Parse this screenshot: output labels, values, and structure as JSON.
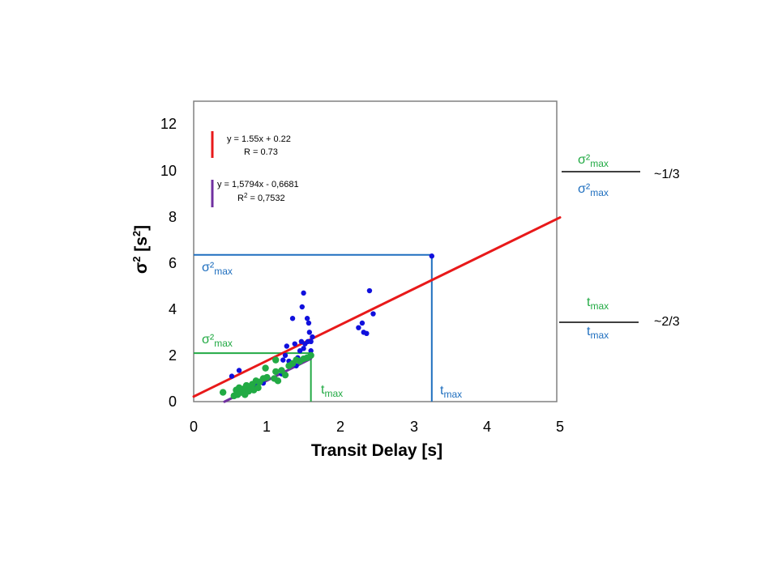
{
  "chart_data": {
    "type": "scatter",
    "xlabel": "Transit Delay [s]",
    "ylabel": "σ² [s²]",
    "xlim": [
      0,
      5
    ],
    "ylim": [
      0,
      13
    ],
    "x_ticks": [
      "0",
      "1",
      "2",
      "3",
      "4",
      "5"
    ],
    "y_ticks": [
      "0",
      "2",
      "4",
      "6",
      "8",
      "10",
      "12"
    ],
    "grid": false,
    "series": [
      {
        "color": "#1010dd",
        "points": [
          [
            0.52,
            1.1
          ],
          [
            0.62,
            1.35
          ],
          [
            0.75,
            0.5
          ],
          [
            0.85,
            0.7
          ],
          [
            0.95,
            0.8
          ],
          [
            1.2,
            1.2
          ],
          [
            1.22,
            1.8
          ],
          [
            1.25,
            2.0
          ],
          [
            1.27,
            2.4
          ],
          [
            1.3,
            1.75
          ],
          [
            1.35,
            3.6
          ],
          [
            1.38,
            2.5
          ],
          [
            1.4,
            1.55
          ],
          [
            1.42,
            1.9
          ],
          [
            1.45,
            2.2
          ],
          [
            1.47,
            2.6
          ],
          [
            1.48,
            4.1
          ],
          [
            1.5,
            4.7
          ],
          [
            1.5,
            2.3
          ],
          [
            1.52,
            2.5
          ],
          [
            1.53,
            1.9
          ],
          [
            1.55,
            3.6
          ],
          [
            1.56,
            2.6
          ],
          [
            1.57,
            3.4
          ],
          [
            1.58,
            3.0
          ],
          [
            1.6,
            2.2
          ],
          [
            1.6,
            2.6
          ],
          [
            1.62,
            2.8
          ],
          [
            2.25,
            3.2
          ],
          [
            2.3,
            3.4
          ],
          [
            2.32,
            3.0
          ],
          [
            2.36,
            2.95
          ],
          [
            2.4,
            4.8
          ],
          [
            2.45,
            3.8
          ],
          [
            3.25,
            6.3
          ]
        ]
      },
      {
        "color": "#22aa44",
        "points": [
          [
            0.4,
            0.4
          ],
          [
            0.55,
            0.25
          ],
          [
            0.58,
            0.5
          ],
          [
            0.6,
            0.3
          ],
          [
            0.62,
            0.6
          ],
          [
            0.65,
            0.4
          ],
          [
            0.68,
            0.55
          ],
          [
            0.7,
            0.3
          ],
          [
            0.72,
            0.7
          ],
          [
            0.75,
            0.45
          ],
          [
            0.78,
            0.6
          ],
          [
            0.8,
            0.75
          ],
          [
            0.82,
            0.5
          ],
          [
            0.85,
            0.9
          ],
          [
            0.88,
            0.6
          ],
          [
            0.9,
            0.85
          ],
          [
            0.95,
            1.0
          ],
          [
            1.0,
            1.05
          ],
          [
            0.98,
            1.45
          ],
          [
            1.1,
            1.0
          ],
          [
            1.12,
            1.3
          ],
          [
            1.15,
            0.9
          ],
          [
            1.2,
            1.35
          ],
          [
            1.25,
            1.15
          ],
          [
            1.3,
            1.55
          ],
          [
            1.35,
            1.65
          ],
          [
            1.4,
            1.8
          ],
          [
            1.45,
            1.75
          ],
          [
            1.5,
            1.85
          ],
          [
            1.55,
            1.9
          ],
          [
            1.6,
            2.0
          ],
          [
            1.12,
            1.8
          ]
        ]
      }
    ],
    "fits": [
      {
        "color": "#e8191a",
        "slope": 1.55,
        "intercept": 0.22,
        "x_range": [
          0,
          5
        ],
        "equation": "y = 1.55x + 0.22",
        "r_label": "R = 0.73"
      },
      {
        "color": "#7030a0",
        "slope": 1.5794,
        "intercept": -0.6681,
        "x_range": [
          0.42,
          1.6
        ],
        "equation": "y = 1,5794x - 0,6681",
        "r_label": "R² = 0,7532"
      }
    ],
    "annotations": {
      "blue_guide": {
        "color": "#1f6fbf",
        "x": 3.25,
        "y": 6.35,
        "y_label": "σ²max",
        "x_label": "tmax"
      },
      "green_guide": {
        "color": "#22aa44",
        "x": 1.6,
        "y": 2.1,
        "y_label": "σ²max",
        "x_label": "tmax"
      }
    }
  },
  "ratios": {
    "sigma": {
      "num_base": "σ²",
      "num_sub": "max",
      "den_base": "σ²",
      "den_sub": "max",
      "approx": "~1/3"
    },
    "t": {
      "num_base": "t",
      "num_sub": "max",
      "den_base": "t",
      "den_sub": "max",
      "approx": "~2/3"
    }
  },
  "legend": {
    "red_equation": "y = 1.55x + 0.22",
    "red_r": "R = 0.73",
    "purple_equation": "y = 1,5794x - 0,6681",
    "purple_r_base": "R",
    "purple_r_sup": "2",
    "purple_r_value": " = 0,7532"
  },
  "labels": {
    "ylabel_sigma": "σ",
    "ylabel_sup1": "2",
    "ylabel_mid": " [s",
    "ylabel_sup2": "2",
    "ylabel_end": "]",
    "sigma_base": "σ²",
    "sub_max": "max",
    "t_base": "t"
  }
}
